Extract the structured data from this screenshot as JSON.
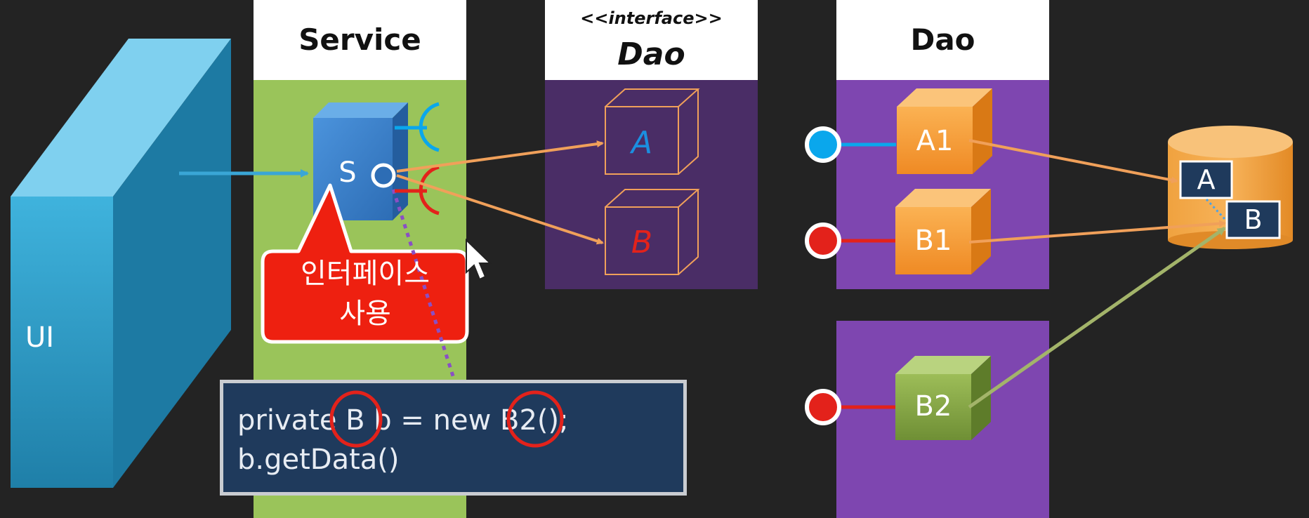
{
  "columns": {
    "service": {
      "title": "Service"
    },
    "interface": {
      "stereotype": "<<interface>>",
      "title": "Dao"
    },
    "dao": {
      "title": "Dao"
    }
  },
  "ui": {
    "label": "UI"
  },
  "service_cube": {
    "label": "S"
  },
  "interfaces": {
    "a": "A",
    "b": "B"
  },
  "implementations": {
    "a1": "A1",
    "b1": "B1",
    "b2": "B2"
  },
  "database": {
    "table_a": "A",
    "table_b": "B"
  },
  "callout": {
    "line1": "인터페이스",
    "line2": "사용"
  },
  "code": {
    "line1": "private B b = new B2();",
    "line2": "b.getData()"
  },
  "colors": {
    "background": "#232323",
    "service_column": "#9ac45a",
    "interface_column": "#4a2d66",
    "dao_column": "#7e46b0",
    "cube_blue": "#3a7fc8",
    "cube_orange": "#f39a3a",
    "cube_green": "#88a94a",
    "ui_wall": "#2d9cc8",
    "connector_blue": "#0aa7ec",
    "connector_red": "#e3221b",
    "arrow_orange": "#f0a05a",
    "arrow_green": "#a3b46a",
    "callout_red": "#ee2010",
    "code_bg": "#1f3a5c"
  }
}
